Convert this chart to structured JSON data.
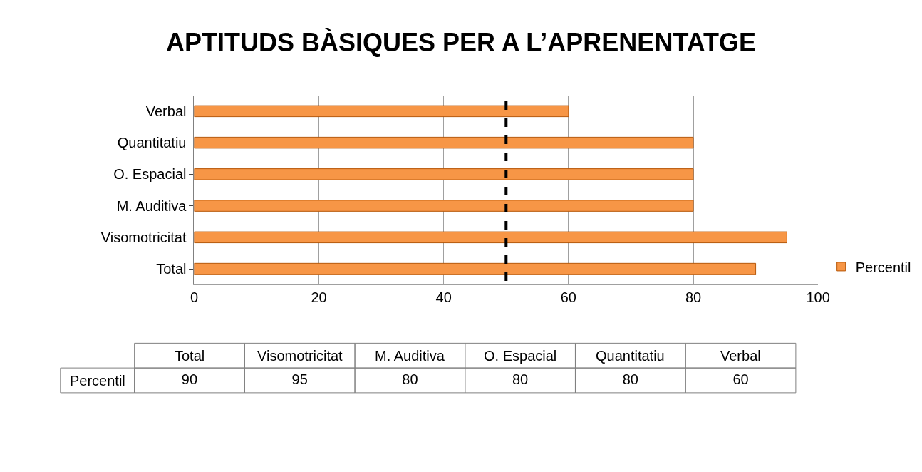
{
  "chart_data": [
    {
      "type": "bar",
      "orientation": "horizontal",
      "title": "APTITUDS BÀSIQUES PER A L’APRENENTATGE",
      "categories": [
        "Verbal",
        "Quantitatiu",
        "O. Espacial",
        "M. Auditiva",
        "Visomotricitat",
        "Total"
      ],
      "series": [
        {
          "name": "Percentil",
          "color": "#f79646",
          "values": [
            60,
            80,
            80,
            80,
            95,
            90
          ]
        }
      ],
      "xlim": [
        0,
        100
      ],
      "xticks": [
        0,
        20,
        40,
        60,
        80,
        100
      ],
      "grid": "x",
      "legend": "right",
      "ref_lines": [
        {
          "axis": "x",
          "value": 50,
          "color": "#000000",
          "line_style": "dashed"
        }
      ]
    },
    {
      "type": "other",
      "categories": [
        "Total",
        "Visomotricitat",
        "M. Auditiva",
        "O. Espacial",
        "Quantitatiu",
        "Verbal"
      ],
      "series": [
        {
          "name": "Percentil",
          "values": [
            90,
            95,
            80,
            80,
            80,
            60
          ]
        }
      ],
      "data_labels": true
    }
  ]
}
